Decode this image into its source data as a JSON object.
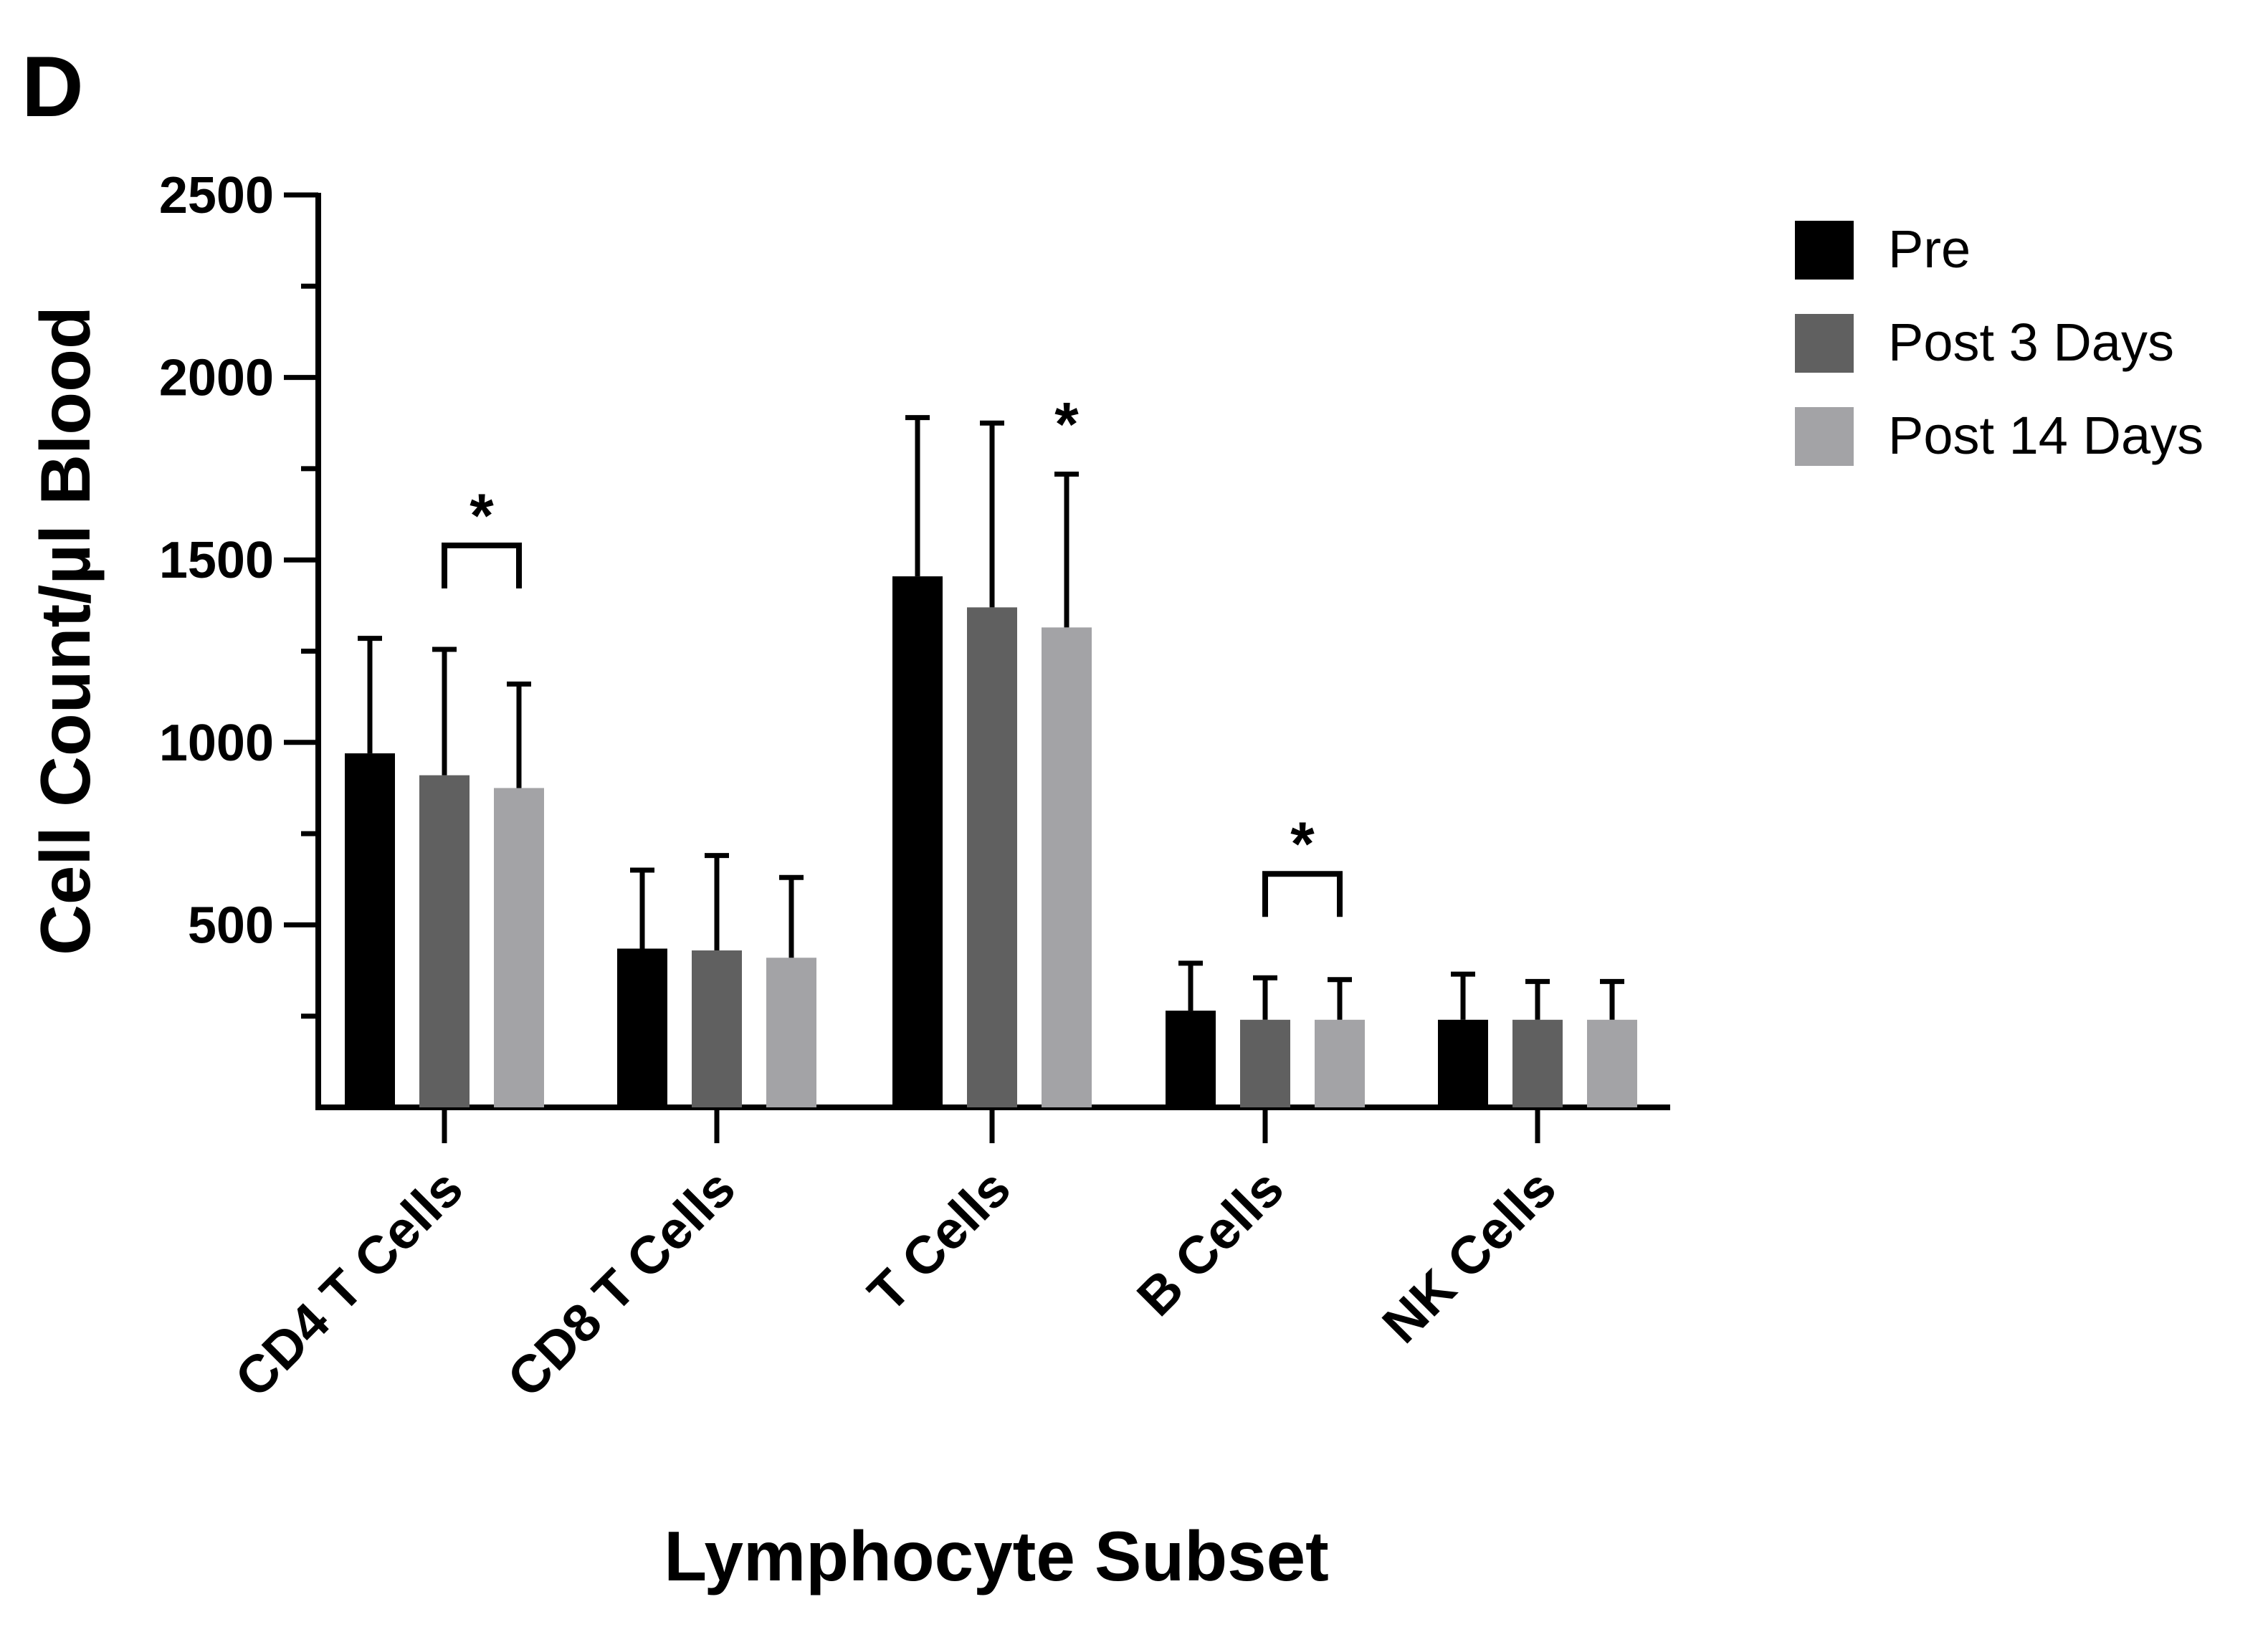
{
  "panel_label": "D",
  "chart_data": {
    "type": "bar",
    "title": "",
    "xlabel": "Lymphocyte Subset",
    "ylabel": "Cell Count/µl Blood",
    "categories": [
      "CD4 T Cells",
      "CD8 T Cells",
      "T Cells",
      "B Cells",
      "NK Cells"
    ],
    "ylim": [
      0,
      2500
    ],
    "yticks": [
      500,
      1000,
      1500,
      2000,
      2500
    ],
    "yminor_step": 250,
    "grid": false,
    "legend_position": "top-right",
    "colors": {
      "Pre": "#000000",
      "Post 3 Days": "#606060",
      "Post 14 Days": "#a3a3a6"
    },
    "series": [
      {
        "name": "Pre",
        "color": "#000000",
        "values": [
          970,
          435,
          1455,
          265,
          240
        ],
        "error": [
          315,
          215,
          435,
          130,
          125
        ]
      },
      {
        "name": "Post 3 Days",
        "color": "#606060",
        "values": [
          910,
          430,
          1370,
          240,
          240
        ],
        "error": [
          345,
          260,
          505,
          115,
          105
        ]
      },
      {
        "name": "Post 14 Days",
        "color": "#a3a3a6",
        "values": [
          875,
          410,
          1315,
          240,
          240
        ],
        "error": [
          285,
          220,
          420,
          110,
          105
        ]
      }
    ],
    "annotations": [
      {
        "label": "*",
        "category": 0,
        "from_series": 1,
        "to_series": 2,
        "bracket": true
      },
      {
        "label": "*",
        "category": 2,
        "series": 2,
        "bracket": false
      },
      {
        "label": "*",
        "category": 3,
        "from_series": 1,
        "to_series": 2,
        "bracket": true
      }
    ]
  }
}
